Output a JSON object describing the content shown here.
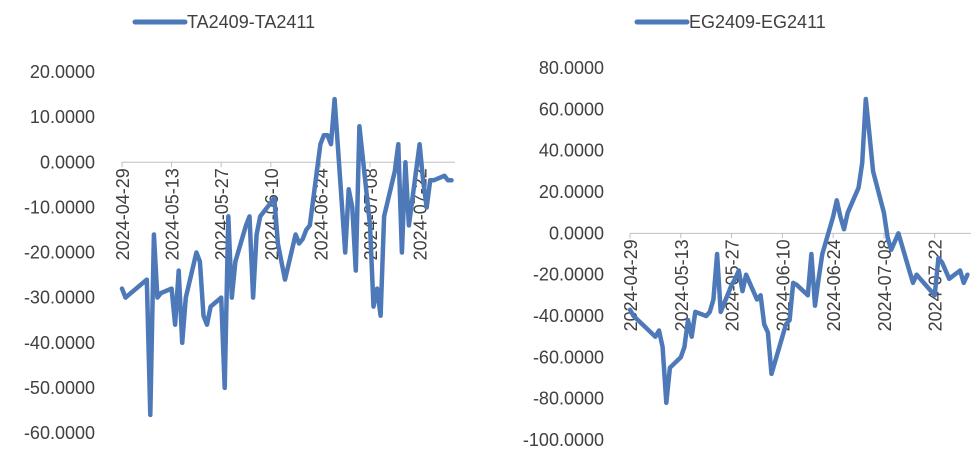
{
  "chart_data": [
    {
      "type": "line",
      "legend": "TA2409-TA2411",
      "color": "#4e79b9",
      "ylim": [
        -60,
        20
      ],
      "yticks": [
        20,
        10,
        0,
        -10,
        -20,
        -30,
        -40,
        -50,
        -60
      ],
      "ytick_labels": [
        "20.0000",
        "10.0000",
        "0.0000",
        "-10.0000",
        "-20.0000",
        "-30.0000",
        "-40.0000",
        "-50.0000",
        "-60.0000"
      ],
      "xlim": [
        "2024-04-29",
        "2024-08-01"
      ],
      "xticks": [
        "2024-04-29",
        "2024-05-13",
        "2024-05-27",
        "2024-06-10",
        "2024-06-24",
        "2024-07-08",
        "2024-07-22"
      ],
      "x": [
        "2024-04-29",
        "2024-04-30",
        "2024-05-06",
        "2024-05-07",
        "2024-05-08",
        "2024-05-09",
        "2024-05-10",
        "2024-05-13",
        "2024-05-14",
        "2024-05-15",
        "2024-05-16",
        "2024-05-17",
        "2024-05-20",
        "2024-05-21",
        "2024-05-22",
        "2024-05-23",
        "2024-05-24",
        "2024-05-27",
        "2024-05-28",
        "2024-05-29",
        "2024-05-30",
        "2024-05-31",
        "2024-06-03",
        "2024-06-04",
        "2024-06-05",
        "2024-06-06",
        "2024-06-07",
        "2024-06-11",
        "2024-06-12",
        "2024-06-13",
        "2024-06-14",
        "2024-06-17",
        "2024-06-18",
        "2024-06-19",
        "2024-06-20",
        "2024-06-21",
        "2024-06-24",
        "2024-06-25",
        "2024-06-26",
        "2024-06-27",
        "2024-06-28",
        "2024-07-01",
        "2024-07-02",
        "2024-07-03",
        "2024-07-04",
        "2024-07-05",
        "2024-07-08",
        "2024-07-09",
        "2024-07-10",
        "2024-07-11",
        "2024-07-12",
        "2024-07-15",
        "2024-07-16",
        "2024-07-17",
        "2024-07-18",
        "2024-07-19",
        "2024-07-22",
        "2024-07-23",
        "2024-07-24",
        "2024-07-25",
        "2024-07-26",
        "2024-07-29",
        "2024-07-30",
        "2024-07-31"
      ],
      "y": [
        -28,
        -30,
        -26,
        -56,
        -16,
        -30,
        -29,
        -28,
        -36,
        -24,
        -40,
        -30,
        -20,
        -22,
        -34,
        -36,
        -32,
        -30,
        -50,
        -12,
        -30,
        -22,
        -14,
        -12,
        -30,
        -16,
        -12,
        -8,
        -18,
        -22,
        -26,
        -16,
        -18,
        -17,
        -15,
        -14,
        4,
        6,
        6,
        4,
        14,
        -20,
        -6,
        -10,
        -24,
        8,
        -14,
        -32,
        -28,
        -34,
        -12,
        -2,
        4,
        -20,
        0,
        -14,
        4,
        -4,
        -10,
        -4,
        -4,
        -3,
        -4,
        -4
      ]
    },
    {
      "type": "line",
      "legend": "EG2409-EG2411",
      "color": "#4e79b9",
      "ylim": [
        -100,
        80
      ],
      "yticks": [
        80,
        60,
        40,
        20,
        0,
        -20,
        -40,
        -60,
        -80,
        -100
      ],
      "ytick_labels": [
        "80.0000",
        "60.0000",
        "40.0000",
        "20.0000",
        "0.0000",
        "-20.0000",
        "-40.0000",
        "-60.0000",
        "-80.0000",
        "-100.0000"
      ],
      "xlim": [
        "2024-04-29",
        "2024-08-01"
      ],
      "xticks": [
        "2024-04-29",
        "2024-05-13",
        "2024-05-27",
        "2024-06-10",
        "2024-06-24",
        "2024-07-08",
        "2024-07-22"
      ],
      "x": [
        "2024-04-29",
        "2024-04-30",
        "2024-05-06",
        "2024-05-07",
        "2024-05-08",
        "2024-05-09",
        "2024-05-10",
        "2024-05-13",
        "2024-05-14",
        "2024-05-15",
        "2024-05-16",
        "2024-05-17",
        "2024-05-20",
        "2024-05-21",
        "2024-05-22",
        "2024-05-23",
        "2024-05-24",
        "2024-05-27",
        "2024-05-28",
        "2024-05-29",
        "2024-05-30",
        "2024-05-31",
        "2024-06-03",
        "2024-06-04",
        "2024-06-05",
        "2024-06-06",
        "2024-06-07",
        "2024-06-11",
        "2024-06-12",
        "2024-06-13",
        "2024-06-14",
        "2024-06-17",
        "2024-06-18",
        "2024-06-19",
        "2024-06-20",
        "2024-06-21",
        "2024-06-24",
        "2024-06-25",
        "2024-06-26",
        "2024-06-27",
        "2024-06-28",
        "2024-07-01",
        "2024-07-02",
        "2024-07-03",
        "2024-07-04",
        "2024-07-05",
        "2024-07-08",
        "2024-07-09",
        "2024-07-10",
        "2024-07-11",
        "2024-07-12",
        "2024-07-15",
        "2024-07-16",
        "2024-07-17",
        "2024-07-18",
        "2024-07-19",
        "2024-07-22",
        "2024-07-23",
        "2024-07-24",
        "2024-07-25",
        "2024-07-26",
        "2024-07-29",
        "2024-07-30",
        "2024-07-31"
      ],
      "y": [
        -37,
        -40,
        -50,
        -47,
        -55,
        -82,
        -65,
        -60,
        -55,
        -42,
        -50,
        -38,
        -40,
        -38,
        -32,
        -10,
        -38,
        -25,
        -22,
        -18,
        -28,
        -20,
        -32,
        -30,
        -44,
        -48,
        -68,
        -44,
        -42,
        -24,
        -25,
        -30,
        -10,
        -35,
        -22,
        -10,
        8,
        16,
        8,
        2,
        10,
        22,
        34,
        65,
        48,
        30,
        10,
        -2,
        -8,
        -4,
        0,
        -18,
        -24,
        -20,
        -22,
        -24,
        -30,
        -12,
        -14,
        -18,
        -22,
        -18,
        -24,
        -20
      ]
    }
  ]
}
